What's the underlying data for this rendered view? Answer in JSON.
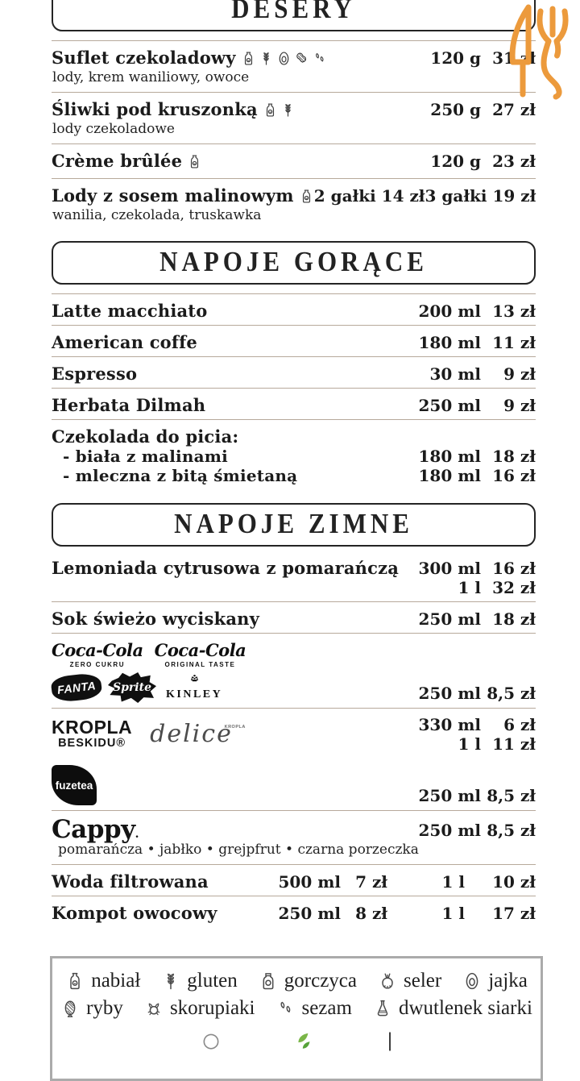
{
  "logo": {
    "name": "fork-and-knife",
    "color": "#EC9A3C"
  },
  "sections": {
    "desery": {
      "title": "DESERY",
      "items": [
        {
          "name": "Suflet czekoladowy",
          "allergens": [
            "milk",
            "gluten",
            "egg",
            "peanut",
            "sesame"
          ],
          "desc": "lody, krem waniliowy, owoce",
          "vol": "120 g",
          "price": "31 zł"
        },
        {
          "name": "Śliwki pod kruszonką",
          "allergens": [
            "milk",
            "gluten"
          ],
          "desc": "lody czekoladowe",
          "vol": "250 g",
          "price": "27 zł"
        },
        {
          "name": "Crème brûlée",
          "allergens": [
            "milk"
          ],
          "vol": "120 g",
          "price": "23 zł"
        },
        {
          "name": "Lody z sosem malinowym",
          "allergens": [
            "milk"
          ],
          "desc": "wanilia, czekolada, truskawka",
          "price1": "2 gałki 14 zł",
          "price2": "3 gałki 19 zł"
        }
      ]
    },
    "gorace": {
      "title": "NAPOJE GORĄCE",
      "items": [
        {
          "name": "Latte macchiato",
          "vol": "200 ml",
          "price": "13 zł"
        },
        {
          "name": "American coffe",
          "vol": "180 ml",
          "price": "11 zł"
        },
        {
          "name": "Espresso",
          "vol": "30 ml",
          "price": "9 zł"
        },
        {
          "name": "Herbata Dilmah",
          "vol": "250 ml",
          "price": "9 zł"
        },
        {
          "name": "Czekolada do picia:",
          "sub": [
            {
              "name": "- biała z malinami",
              "vol": "180 ml",
              "price": "18 zł"
            },
            {
              "name": "- mleczna z bitą śmietaną",
              "vol": "180 ml",
              "price": "16 zł"
            }
          ]
        }
      ]
    },
    "zimne": {
      "title": "NAPOJE ZIMNE",
      "items": [
        {
          "name": "Lemoniada cytrusowa z pomarańczą",
          "vol": "300 ml",
          "price": "16 zł",
          "vol2": "1 l",
          "price2": "32 zł"
        },
        {
          "name": "Sok świeżo wyciskany",
          "vol": "250 ml",
          "price": "18 zł"
        },
        {
          "brands": {
            "cola_zero": {
              "label": "Coca-Cola",
              "sub": "ZERO CUKRU"
            },
            "cola_orig": {
              "label": "Coca-Cola",
              "sub": "ORIGINAL TASTE"
            },
            "fanta": "FANTA",
            "sprite": "Sprite",
            "kinley": "KINLEY"
          },
          "vol": "250 ml",
          "price": "8,5 zł"
        },
        {
          "brands": {
            "kropla": "KROPLA",
            "beskidu": "BESKIDU®",
            "delice": "delice",
            "delice_sub": "KROPLA"
          },
          "vol": "330 ml",
          "price": "6 zł",
          "vol2": "1 l",
          "price2": "11 zł"
        },
        {
          "brands": {
            "fuzetea": "fuzetea"
          },
          "vol": "250 ml",
          "price": "8,5 zł"
        },
        {
          "brands": {
            "cappy": "Cappy"
          },
          "desc": "pomarańcza • jabłko • grejpfrut • czarna porzeczka",
          "vol": "250 ml",
          "price": "8,5 zł"
        },
        {
          "name": "Woda filtrowana",
          "vol": "500 ml",
          "price": "7 zł",
          "vol2": "1 l",
          "price2": "10 zł"
        },
        {
          "name": "Kompot owocowy",
          "vol": "250 ml",
          "price": "8 zł",
          "vol2": "1 l",
          "price2": "17 zł"
        }
      ]
    }
  },
  "legend": {
    "rows": [
      [
        {
          "icon": "milk",
          "label": "nabiał"
        },
        {
          "icon": "gluten",
          "label": "gluten"
        },
        {
          "icon": "mustard",
          "label": "gorczyca"
        },
        {
          "icon": "celery",
          "label": "seler"
        },
        {
          "icon": "egg",
          "label": "jajka"
        }
      ],
      [
        {
          "icon": "fish",
          "label": "ryby"
        },
        {
          "icon": "crab",
          "label": "skorupiaki"
        },
        {
          "icon": "sesame",
          "label": "sezam"
        },
        {
          "icon": "sulfur",
          "label": "dwutlenek siarki"
        }
      ]
    ],
    "row3_partial_icons": [
      "soy",
      "leaves"
    ]
  }
}
